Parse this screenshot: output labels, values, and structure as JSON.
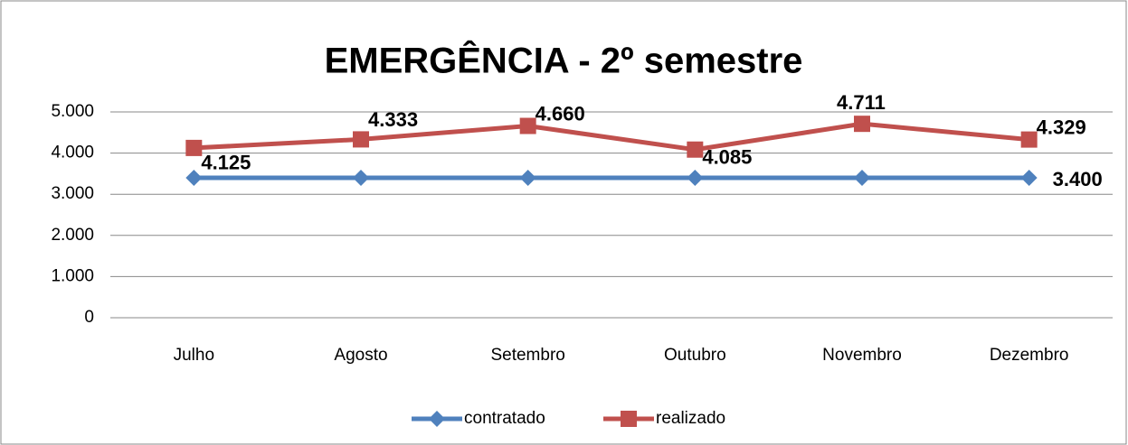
{
  "chart_data": {
    "type": "line",
    "title": "EMERGÊNCIA - 2º semestre",
    "categories": [
      "Julho",
      "Agosto",
      "Setembro",
      "Outubro",
      "Novembro",
      "Dezembro"
    ],
    "series": [
      {
        "name": "contratado",
        "color": "#4f81bd",
        "marker": "diamond",
        "values": [
          3400,
          3400,
          3400,
          3400,
          3400,
          3400
        ],
        "value_labels": [
          null,
          null,
          null,
          null,
          null,
          "3.400"
        ]
      },
      {
        "name": "realizado",
        "color": "#c0504d",
        "marker": "square",
        "values": [
          4125,
          4333,
          4660,
          4085,
          4711,
          4329
        ],
        "value_labels": [
          "4.125",
          "4.333",
          "4.660",
          "4.085",
          "4.711",
          "4.329"
        ]
      }
    ],
    "ylim": [
      0,
      5000
    ],
    "yticks": [
      0,
      {
        "value": 1000,
        "label": "1.000"
      },
      {
        "value": 2000,
        "label": "2.000"
      },
      {
        "value": 3000,
        "label": "3.000"
      },
      {
        "value": 4000,
        "label": "4.000"
      },
      {
        "value": 5000,
        "label": "5.000"
      }
    ],
    "grid": true,
    "legend": "bottom"
  }
}
